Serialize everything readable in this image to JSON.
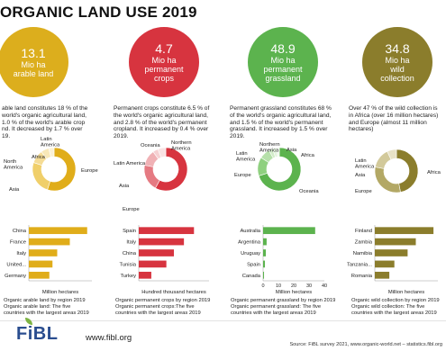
{
  "header": {
    "title": "ORGANIC LAND USE 2019"
  },
  "colors": {
    "arable": "#dcae1d",
    "crops": "#d7343f",
    "grassland": "#5cb34e",
    "wild": "#8b7d2c"
  },
  "circles": [
    {
      "big": "13.1",
      "line1": "Mio ha",
      "line2": "arable land",
      "line3": ""
    },
    {
      "big": "4.7",
      "line1": "Mio ha",
      "line2": "permanent",
      "line3": "crops"
    },
    {
      "big": "48.9",
      "line1": "Mio ha",
      "line2": "permanent",
      "line3": "grassland"
    },
    {
      "big": "34.8",
      "line1": "Mio ha",
      "line2": "wild",
      "line3": "collection"
    }
  ],
  "descriptions": [
    [
      "able land constitutes 18 % of the",
      "world's organic agricultural land,",
      "1.0 % of the world's arable crop",
      "nd. It decreased by 1.7 % over",
      "19."
    ],
    [
      "Permanent crops constitute 6.5 % of",
      "the world's organic agricultural land,",
      "and 2.8 % of the world's permanent",
      "cropland. It increased by 0.4 % over",
      "2019."
    ],
    [
      "Permanent grassland constitutes 68 %",
      "of the world's organic agricultural land,",
      "and 1.5 % of the world's permanent",
      "grassland. It increased by 1.5 % over",
      "2019."
    ],
    [
      "Over 47 % of the wild collection is",
      "in Africa (over 16 million hectares)",
      "and Europe (almost 11 million",
      "hectares)"
    ]
  ],
  "chart_data": [
    {
      "type": "pie",
      "categories": [
        "Europe",
        "Asia",
        "North America",
        "Africa",
        "Latin America"
      ],
      "values": [
        55,
        25,
        10,
        6,
        4
      ],
      "colors": [
        "#e0ad1a",
        "#f0cf6a",
        "#f5dc95",
        "#f8e8b8",
        "#fbf1d6"
      ]
    },
    {
      "type": "bar",
      "categories": [
        "China",
        "France",
        "Italy",
        "United...",
        "Germany"
      ],
      "values": [
        1.85,
        1.3,
        0.9,
        0.75,
        0.65
      ],
      "xlabel": "Million hectares",
      "xlim": [
        0,
        2
      ],
      "color": "#e0ad1a",
      "caption1": "Organic arable land by region 2019",
      "caption2": "Organic arable land: The five",
      "caption3": "countries with the largest areas 2019"
    },
    {
      "type": "pie",
      "categories": [
        "Europe",
        "Asia",
        "Latin America",
        "Oceania",
        "Northern America"
      ],
      "values": [
        58,
        20,
        12,
        4,
        6
      ],
      "colors": [
        "#d7343f",
        "#e57a82",
        "#f0b1b5",
        "#f6d0d2",
        "#f9e2e3"
      ]
    },
    {
      "type": "bar",
      "categories": [
        "Spain",
        "Italy",
        "China",
        "Tunisia",
        "Turkey"
      ],
      "values": [
        11,
        9,
        7,
        5.5,
        2.5
      ],
      "xlabel": "Hundred thousand hectares",
      "xlim": [
        0,
        14
      ],
      "color": "#d7343f",
      "caption1": "Organic permanent crops by region 2019",
      "caption2": "Organic permanent crops:The five",
      "caption3": "countries with the largest areas 2019"
    },
    {
      "type": "pie",
      "categories": [
        "Oceania",
        "Europe",
        "Latin America",
        "Northern America",
        "Asia",
        "Africa"
      ],
      "values": [
        70,
        14,
        8,
        3,
        3,
        2
      ],
      "colors": [
        "#5cb34e",
        "#8fd07f",
        "#b6e0aa",
        "#d2ecc9",
        "#e3f3dd",
        "#f0f8ec"
      ]
    },
    {
      "type": "bar",
      "categories": [
        "Australia",
        "Argentina",
        "Uruguay",
        "Spain",
        "Canada"
      ],
      "values": [
        34,
        2.3,
        1.8,
        1.2,
        0.6
      ],
      "xlabel": "Million hectares",
      "xlim": [
        0,
        40
      ],
      "ticks": [
        0,
        10,
        20,
        30,
        40
      ],
      "color": "#5cb34e",
      "caption1": "Organic permanent grassland by region 2019",
      "caption2": "Organic permanent grassland: The five",
      "caption3": "countries with the largest areas 2019"
    },
    {
      "type": "pie",
      "categories": [
        "Africa",
        "Europe",
        "Asia",
        "Latin America"
      ],
      "values": [
        47,
        31,
        15,
        7
      ],
      "colors": [
        "#8b7d2c",
        "#b3a865",
        "#d2c99a",
        "#e8e2c6"
      ]
    },
    {
      "type": "bar",
      "categories": [
        "Finland",
        "Zambia",
        "Namibia",
        "Tanzania...",
        "Romania"
      ],
      "values": [
        9.3,
        6.5,
        5.2,
        3.1,
        2.3
      ],
      "xlabel": "Million hectares",
      "xlim": [
        0,
        10
      ],
      "color": "#8b7d2c",
      "caption1": "Organic wild collection by region 2019",
      "caption2": "Organic wild collection: The five",
      "caption3": "countries with the largest areas 2019"
    }
  ],
  "footer": {
    "logo": "FiBL",
    "url": "www.fibl.org",
    "source": "Source: FiBL survey 2021, www.organic-world.net – statistics.fibl.org"
  }
}
